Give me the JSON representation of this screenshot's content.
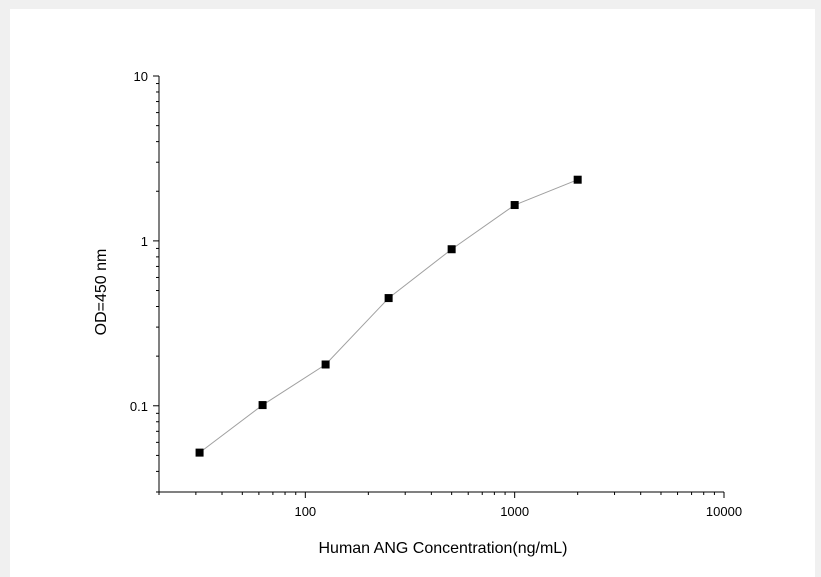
{
  "chart_data": {
    "type": "line",
    "title": "",
    "xlabel": "Human ANG Concentration(ng/mL)",
    "ylabel": "OD=450 nm",
    "xscale": "log",
    "yscale": "log",
    "xlim": [
      20,
      10000
    ],
    "ylim": [
      0.03,
      10
    ],
    "xticks": [
      {
        "value": 100,
        "label": "100"
      },
      {
        "value": 1000,
        "label": "1000"
      },
      {
        "value": 10000,
        "label": "10000"
      }
    ],
    "yticks": [
      {
        "value": 0.1,
        "label": "0.1"
      },
      {
        "value": 1,
        "label": "1"
      },
      {
        "value": 10,
        "label": "10"
      }
    ],
    "grid": false,
    "legend": "none",
    "series": [
      {
        "color": "#000000",
        "line_color": "#a0a0a0",
        "marker": "square",
        "x": [
          31.25,
          62.5,
          125,
          250,
          500,
          1000,
          2000
        ],
        "y": [
          0.052,
          0.101,
          0.178,
          0.45,
          0.89,
          1.65,
          2.35
        ]
      }
    ]
  }
}
